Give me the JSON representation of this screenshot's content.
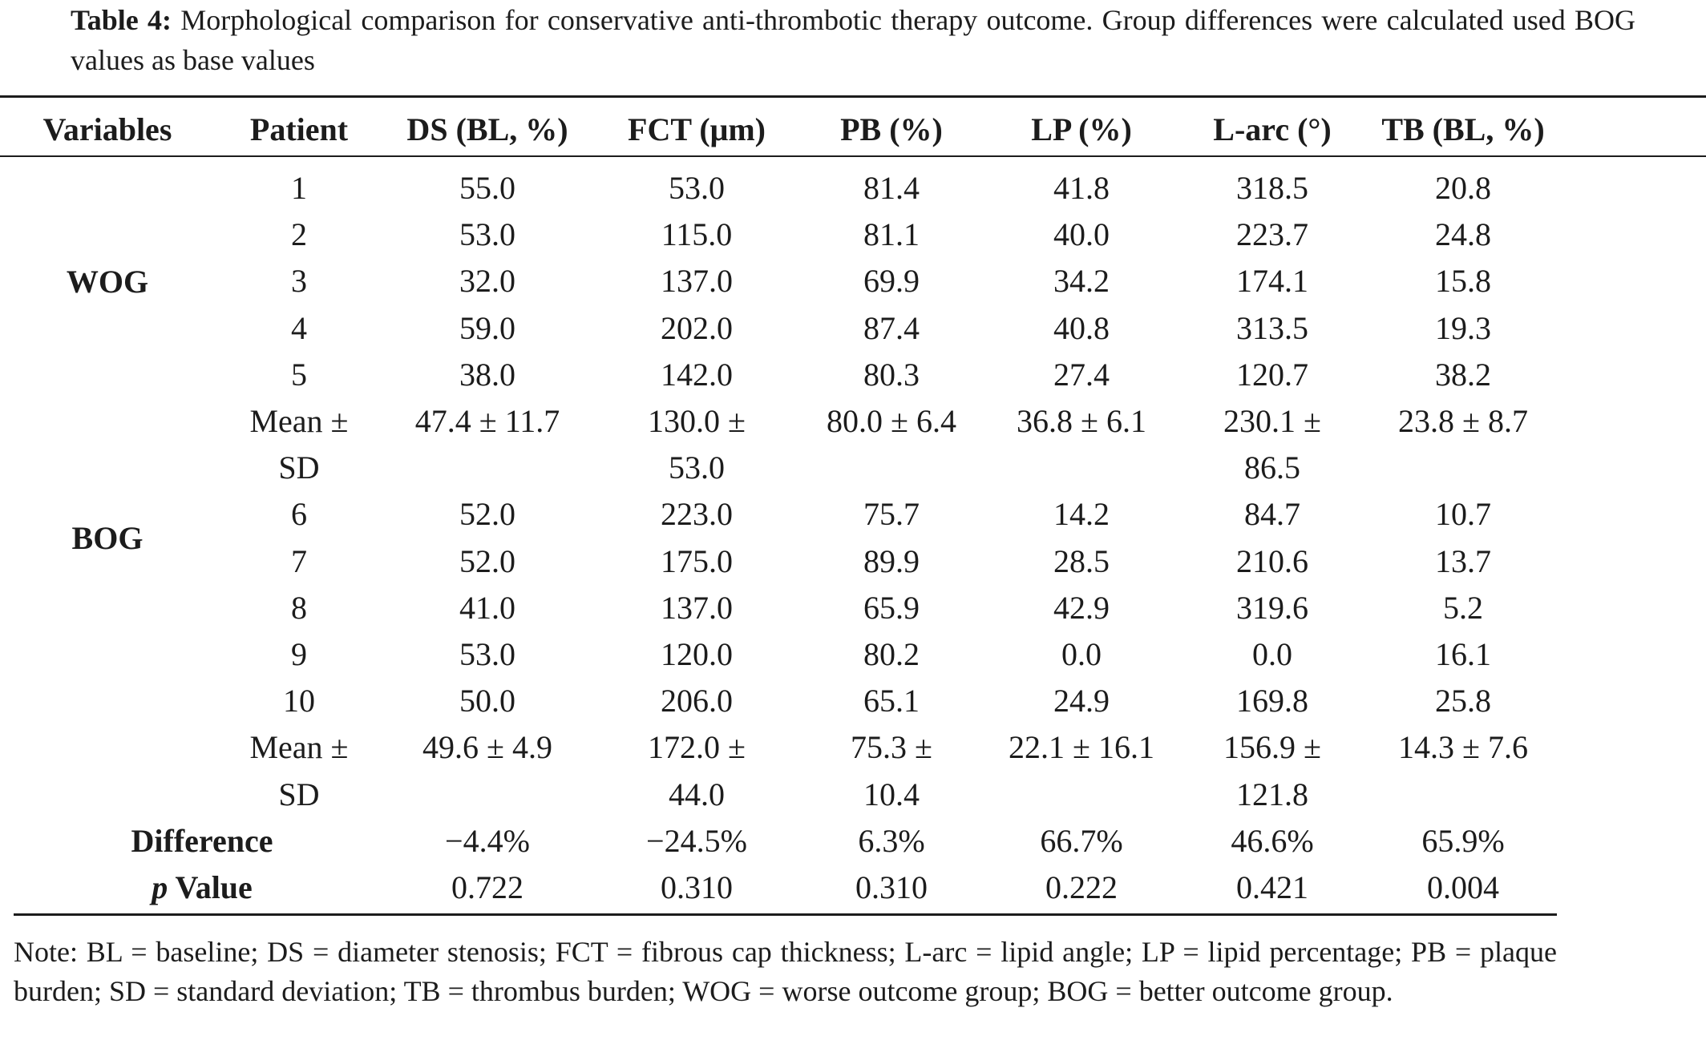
{
  "caption": {
    "label": "Table 4:",
    "text": "Morphological comparison for conservative anti-thrombotic therapy outcome. Group differences were calculated used BOG values as base values"
  },
  "headers": [
    "Variables",
    "Patient",
    "DS (BL, %)",
    "FCT (μm)",
    "PB (%)",
    "LP (%)",
    "L-arc (°)",
    "TB (BL, %)"
  ],
  "groups": {
    "wog": "WOG",
    "bog": "BOG"
  },
  "rows": [
    [
      "1",
      "55.0",
      "53.0",
      "81.4",
      "41.8",
      "318.5",
      "20.8"
    ],
    [
      "2",
      "53.0",
      "115.0",
      "81.1",
      "40.0",
      "223.7",
      "24.8"
    ],
    [
      "3",
      "32.0",
      "137.0",
      "69.9",
      "34.2",
      "174.1",
      "15.8"
    ],
    [
      "4",
      "59.0",
      "202.0",
      "87.4",
      "40.8",
      "313.5",
      "19.3"
    ],
    [
      "5",
      "38.0",
      "142.0",
      "80.3",
      "27.4",
      "120.7",
      "38.2"
    ],
    [
      "Mean ±",
      "47.4 ± 11.7",
      "130.0 ±",
      "80.0 ± 6.4",
      "36.8 ± 6.1",
      "230.1 ±",
      "23.8 ± 8.7"
    ],
    [
      "SD",
      "",
      "53.0",
      "",
      "",
      "86.5",
      ""
    ],
    [
      "6",
      "52.0",
      "223.0",
      "75.7",
      "14.2",
      "84.7",
      "10.7"
    ],
    [
      "7",
      "52.0",
      "175.0",
      "89.9",
      "28.5",
      "210.6",
      "13.7"
    ],
    [
      "8",
      "41.0",
      "137.0",
      "65.9",
      "42.9",
      "319.6",
      "5.2"
    ],
    [
      "9",
      "53.0",
      "120.0",
      "80.2",
      "0.0",
      "0.0",
      "16.1"
    ],
    [
      "10",
      "50.0",
      "206.0",
      "65.1",
      "24.9",
      "169.8",
      "25.8"
    ],
    [
      "Mean ±",
      "49.6 ± 4.9",
      "172.0 ±",
      "75.3 ±",
      "22.1 ± 16.1",
      "156.9 ±",
      "14.3 ± 7.6"
    ],
    [
      "SD",
      "",
      "44.0",
      "10.4",
      "",
      "121.8",
      ""
    ]
  ],
  "difference": {
    "label": "Difference",
    "values": [
      "−4.4%",
      "−24.5%",
      "6.3%",
      "66.7%",
      "46.6%",
      "65.9%"
    ]
  },
  "pvalue": {
    "label_italic": "p",
    "label_rest": " Value",
    "values": [
      "0.722",
      "0.310",
      "0.310",
      "0.222",
      "0.421",
      "0.004"
    ]
  },
  "note": "Note: BL = baseline; DS = diameter stenosis; FCT = fibrous cap thickness; L-arc = lipid angle; LP = lipid percentage; PB = plaque burden; SD = standard deviation; TB = thrombus burden; WOG = worse outcome group; BOG = better outcome group."
}
